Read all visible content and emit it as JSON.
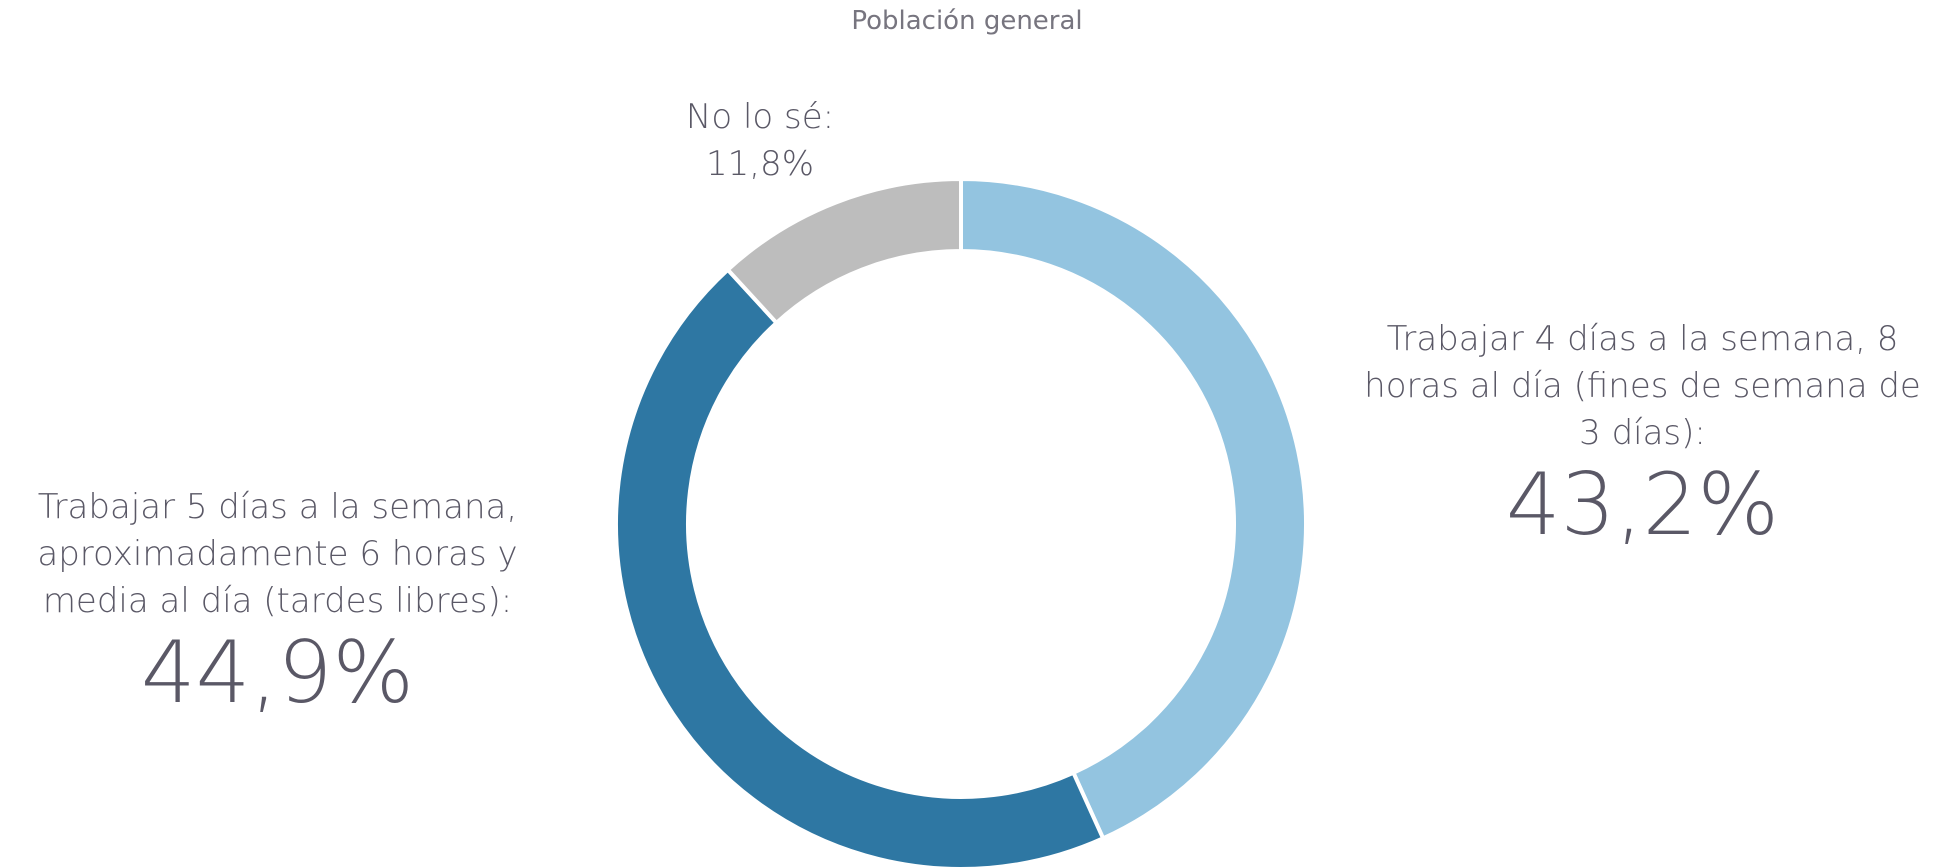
{
  "chart_data": {
    "type": "donut",
    "title": "Población general",
    "categories": [
      "Trabajar 4 días a la semana, 8 horas al día (fines de semana de 3 días):",
      "Trabajar 5 días a la semana, aproximadamente 6 horas y media al día (tardes libres):",
      "No lo sé:"
    ],
    "values": [
      43.2,
      44.9,
      11.8
    ],
    "value_labels": [
      "43,2%",
      "44,9%",
      "11,8%"
    ],
    "colors": [
      "#93c4e0",
      "#2e77a3",
      "#bdbdbd"
    ]
  }
}
